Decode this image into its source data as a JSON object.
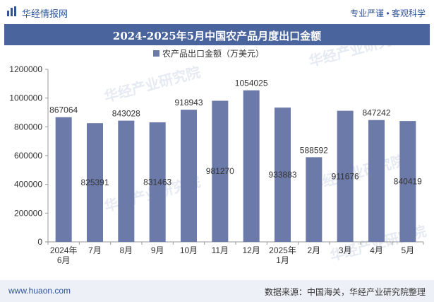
{
  "header": {
    "logo_text": "华经情报网",
    "tagline": "专业严谨 • 客观科学"
  },
  "chart_data": {
    "type": "bar",
    "title": "2024-2025年5月中国农产品月度出口金额",
    "categories": [
      "2024年\n6月",
      "7月",
      "8月",
      "9月",
      "10月",
      "11月",
      "12月",
      "2025年\n1月",
      "2月",
      "3月",
      "4月",
      "5月"
    ],
    "series": [
      {
        "name": "农产品出口金额（万美元）",
        "values": [
          867064,
          825391,
          843028,
          831463,
          918943,
          981270,
          1054025,
          933883,
          588592,
          911676,
          847242,
          840419
        ],
        "color": "#6b7aa8"
      }
    ],
    "ylim": [
      0,
      1200000
    ],
    "yticks": [
      0,
      200000,
      400000,
      600000,
      800000,
      1000000,
      1200000
    ],
    "value_label_inside": [
      false,
      true,
      false,
      true,
      false,
      true,
      false,
      true,
      false,
      true,
      false,
      true
    ],
    "legend_position": "top-center",
    "grid": false
  },
  "footer": {
    "website": "www.huaon.com",
    "source": "数据来源：中国海关，华经产业研究院整理"
  },
  "watermark": "华经产业研究院"
}
